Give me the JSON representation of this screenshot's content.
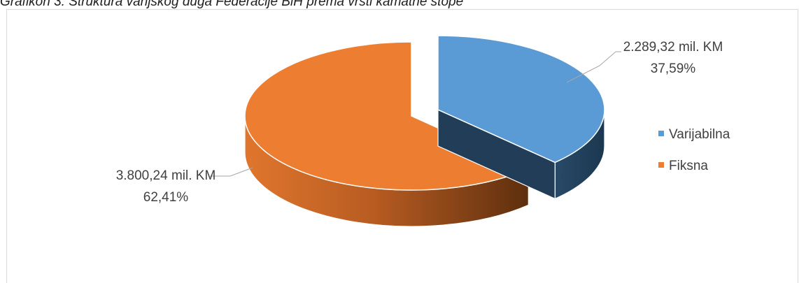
{
  "caption": "Grafikon 3: Struktura vanjskog duga Federacije BiH prema vrsti kamatne stope",
  "chart_data": {
    "type": "pie",
    "title": "",
    "legend_position": "right",
    "series": [
      {
        "name": "Varijabilna",
        "value": 2289.32,
        "value_label": "2.289,32 mil. KM",
        "percent_label": "37,59%",
        "percent": 37.59,
        "color": "#5b9bd5",
        "side_color": "#203c55"
      },
      {
        "name": "Fiksna",
        "value": 3800.24,
        "value_label": "3.800,24 mil. KM",
        "percent_label": "62,41%",
        "percent": 62.41,
        "color": "#ed7d31",
        "side_color": "#7a3f14"
      }
    ]
  }
}
